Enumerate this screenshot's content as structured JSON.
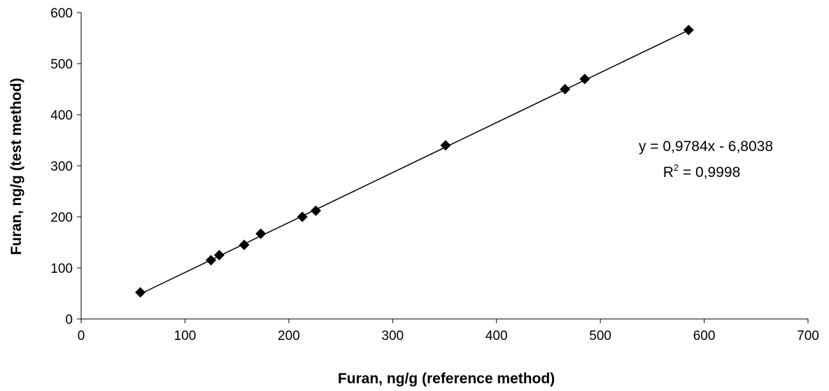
{
  "chart_data": {
    "type": "scatter",
    "title": "",
    "xlabel": "Furan, ng/g (reference method)",
    "ylabel": "Furan, ng/g (test method)",
    "xlim": [
      0,
      700
    ],
    "ylim": [
      0,
      600
    ],
    "xticks": [
      0,
      100,
      200,
      300,
      400,
      500,
      600,
      700
    ],
    "yticks": [
      0,
      100,
      200,
      300,
      400,
      500,
      600
    ],
    "grid": false,
    "legend": "none",
    "marker": "diamond",
    "marker_color": "#000000",
    "series": [
      {
        "points": [
          {
            "x": 57,
            "y": 52
          },
          {
            "x": 125,
            "y": 115
          },
          {
            "x": 133,
            "y": 125
          },
          {
            "x": 157,
            "y": 145
          },
          {
            "x": 173,
            "y": 167
          },
          {
            "x": 213,
            "y": 200
          },
          {
            "x": 226,
            "y": 212
          },
          {
            "x": 351,
            "y": 340
          },
          {
            "x": 466,
            "y": 450
          },
          {
            "x": 485,
            "y": 470
          },
          {
            "x": 585,
            "y": 566
          }
        ]
      }
    ],
    "trendline": {
      "slope": 0.9784,
      "intercept": -6.8038,
      "x_range": [
        57,
        585
      ],
      "equation_text": "y = 0,9784x - 6,8038",
      "r2_prefix": "R",
      "r2_superscript": "2",
      "r2_value_text": " = 0,9998"
    }
  }
}
